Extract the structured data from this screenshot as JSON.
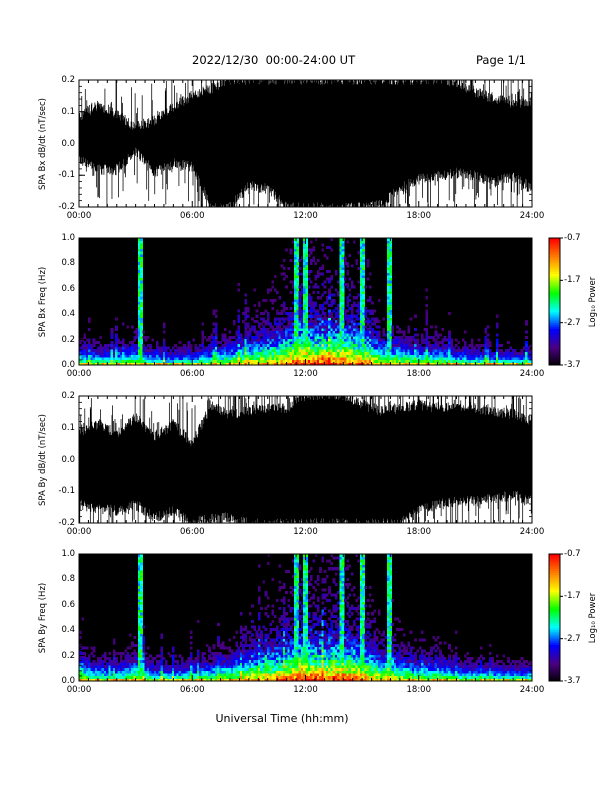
{
  "header": {
    "title": "2022/12/30  00:00-24:00 UT",
    "page_label": "Page 1/1"
  },
  "xlabel": "Universal Time (hh:mm)",
  "colors": {
    "trace_fill": "#000000",
    "colormap": [
      "#000000",
      "#4b0082",
      "#0000ff",
      "#00ffff",
      "#00ff00",
      "#ffff00",
      "#ff8000",
      "#ff0000"
    ]
  },
  "chart_data": [
    {
      "type": "line",
      "ylabel": "SPA Bx dB/dt (nT/sec)",
      "xlim": [
        0,
        24
      ],
      "ylim": [
        -0.2,
        0.2
      ],
      "x_ticks": [
        "00:00",
        "06:00",
        "12:00",
        "18:00",
        "24:00"
      ],
      "y_ticks": [
        "-0.2",
        "-0.1",
        "0.0",
        "0.1",
        "0.2"
      ],
      "envelope": {
        "x": [
          0,
          1,
          2,
          3,
          4,
          5,
          6,
          7,
          8,
          9,
          10,
          11,
          12,
          13,
          14,
          15,
          16,
          17,
          18,
          19,
          20,
          21,
          22,
          23,
          24
        ],
        "upper": [
          0.1,
          0.14,
          0.11,
          0.07,
          0.09,
          0.13,
          0.17,
          0.19,
          0.22,
          0.22,
          0.22,
          0.22,
          0.22,
          0.22,
          0.22,
          0.22,
          0.22,
          0.22,
          0.22,
          0.22,
          0.21,
          0.18,
          0.16,
          0.14,
          0.15
        ],
        "lower": [
          -0.07,
          -0.1,
          -0.1,
          -0.04,
          -0.11,
          -0.08,
          -0.09,
          -0.22,
          -0.22,
          -0.15,
          -0.16,
          -0.22,
          -0.22,
          -0.22,
          -0.22,
          -0.22,
          -0.21,
          -0.16,
          -0.13,
          -0.12,
          -0.11,
          -0.12,
          -0.14,
          -0.12,
          -0.16
        ]
      }
    },
    {
      "type": "heatmap",
      "ylabel": "SPA Bx Freq (Hz)",
      "xlim": [
        0,
        24
      ],
      "ylim": [
        0,
        1.0
      ],
      "x_ticks": [
        "00:00",
        "06:00",
        "12:00",
        "18:00",
        "24:00"
      ],
      "y_ticks": [
        "0.0",
        "0.2",
        "0.4",
        "0.6",
        "0.8",
        "1.0"
      ],
      "colorbar": {
        "label": "Log₁₀ Power",
        "range": [
          -3.7,
          -0.7
        ],
        "ticks": [
          "-0.7",
          "-1.7",
          "-2.7",
          "-3.7"
        ]
      },
      "activity_x": [
        0,
        1,
        2,
        3,
        4,
        5,
        6,
        7,
        8,
        9,
        10,
        11,
        12,
        13,
        14,
        15,
        16,
        17,
        18,
        19,
        20,
        21,
        22,
        23,
        24
      ],
      "activity": [
        0.25,
        0.18,
        0.15,
        0.3,
        0.15,
        0.12,
        0.16,
        0.22,
        0.3,
        0.4,
        0.48,
        0.62,
        0.75,
        0.7,
        0.72,
        0.62,
        0.4,
        0.35,
        0.25,
        0.28,
        0.18,
        0.15,
        0.14,
        0.12,
        0.12
      ],
      "spikes_hours": [
        3.2,
        11.5,
        12.0,
        13.9,
        15.0,
        16.4
      ]
    },
    {
      "type": "line",
      "ylabel": "SPA By dB/dt (nT/sec)",
      "xlim": [
        0,
        24
      ],
      "ylim": [
        -0.2,
        0.2
      ],
      "x_ticks": [
        "00:00",
        "06:00",
        "12:00",
        "18:00",
        "24:00"
      ],
      "y_ticks": [
        "-0.2",
        "-0.1",
        "0.0",
        "0.1",
        "0.2"
      ],
      "envelope": {
        "x": [
          0,
          1,
          2,
          3,
          4,
          5,
          6,
          7,
          8,
          9,
          10,
          11,
          12,
          13,
          14,
          15,
          16,
          17,
          18,
          19,
          20,
          21,
          22,
          23,
          24
        ],
        "upper": [
          0.1,
          0.13,
          0.1,
          0.15,
          0.09,
          0.13,
          0.07,
          0.19,
          0.16,
          0.17,
          0.18,
          0.18,
          0.22,
          0.22,
          0.22,
          0.19,
          0.17,
          0.18,
          0.19,
          0.18,
          0.19,
          0.18,
          0.17,
          0.16,
          0.14
        ],
        "lower": [
          -0.16,
          -0.17,
          -0.18,
          -0.16,
          -0.2,
          -0.18,
          -0.22,
          -0.2,
          -0.2,
          -0.22,
          -0.22,
          -0.22,
          -0.22,
          -0.22,
          -0.22,
          -0.22,
          -0.22,
          -0.22,
          -0.18,
          -0.16,
          -0.15,
          -0.15,
          -0.14,
          -0.13,
          -0.15
        ]
      }
    },
    {
      "type": "heatmap",
      "ylabel": "SPA By Freq (Hz)",
      "xlim": [
        0,
        24
      ],
      "ylim": [
        0,
        1.0
      ],
      "x_ticks": [
        "00:00",
        "06:00",
        "12:00",
        "18:00",
        "24:00"
      ],
      "y_ticks": [
        "0.0",
        "0.2",
        "0.4",
        "0.6",
        "0.8",
        "1.0"
      ],
      "colorbar": {
        "label": "Log₁₀ Power",
        "range": [
          -3.7,
          -0.7
        ],
        "ticks": [
          "-0.7",
          "-1.7",
          "-2.7",
          "-3.7"
        ]
      },
      "activity_x": [
        0,
        1,
        2,
        3,
        4,
        5,
        6,
        7,
        8,
        9,
        10,
        11,
        12,
        13,
        14,
        15,
        16,
        17,
        18,
        19,
        20,
        21,
        22,
        23,
        24
      ],
      "activity": [
        0.32,
        0.22,
        0.18,
        0.35,
        0.18,
        0.16,
        0.2,
        0.26,
        0.34,
        0.45,
        0.52,
        0.66,
        0.78,
        0.72,
        0.75,
        0.65,
        0.45,
        0.38,
        0.28,
        0.3,
        0.2,
        0.17,
        0.16,
        0.14,
        0.14
      ],
      "spikes_hours": [
        3.2,
        11.5,
        12.0,
        13.9,
        15.0,
        16.4
      ]
    }
  ]
}
